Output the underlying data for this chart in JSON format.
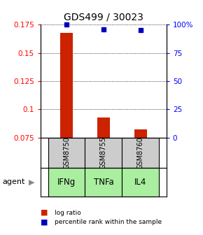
{
  "title": "GDS499 / 30023",
  "samples": [
    "GSM8750",
    "GSM8755",
    "GSM8760"
  ],
  "agents": [
    "IFNg",
    "TNFa",
    "IL4"
  ],
  "log_ratio": [
    0.168,
    0.093,
    0.082
  ],
  "log_ratio_baseline": 0.075,
  "percentile_rank": [
    100,
    96,
    95
  ],
  "ylim_left": [
    0.075,
    0.175
  ],
  "ylim_right": [
    0,
    100
  ],
  "yticks_left": [
    0.075,
    0.1,
    0.125,
    0.15,
    0.175
  ],
  "yticks_right": [
    0,
    25,
    50,
    75,
    100
  ],
  "bar_color": "#cc2200",
  "dot_color": "#0000bb",
  "sample_box_color": "#cccccc",
  "agent_box_color": "#aaeea0",
  "title_fontsize": 10,
  "tick_fontsize": 7.5,
  "legend_fontsize": 6.5,
  "agent_label_fontsize": 8.5,
  "sample_label_fontsize": 7,
  "bar_width": 0.35,
  "agent_label": "agent"
}
